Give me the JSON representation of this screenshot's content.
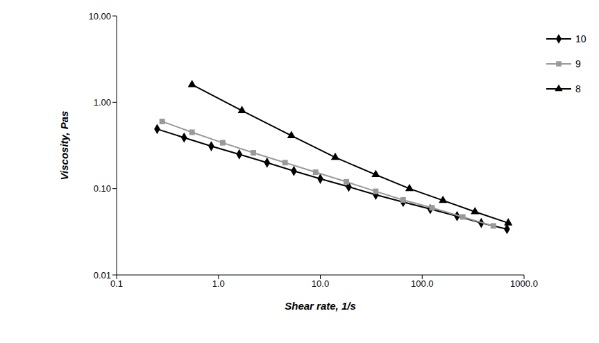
{
  "chart_data": {
    "type": "line",
    "x_label": "Shear rate, 1/s",
    "y_label": "Viscosity, Pas",
    "log": true,
    "grid": false,
    "legend": "right",
    "xlim": [
      0.1,
      1000
    ],
    "xticks": [
      0.1,
      {
        "value": 1,
        "label": "1.0"
      },
      {
        "value": 10,
        "label": "10.0"
      },
      {
        "value": 100,
        "label": "100.0"
      },
      {
        "value": 1000,
        "label": "1000.0"
      }
    ],
    "ylim": [
      0.01,
      10
    ],
    "yticks": [
      {
        "value": 0.01,
        "label": "0.01"
      },
      {
        "value": 0.1,
        "label": "0.10"
      },
      {
        "value": 1,
        "label": "1.00"
      },
      {
        "value": 10,
        "label": "10.00"
      }
    ],
    "series": [
      {
        "name": "10",
        "color": "#000000",
        "marker": "diamond",
        "x": [
          0.25,
          0.46,
          0.85,
          1.6,
          3,
          5.5,
          10,
          19,
          35,
          65,
          120,
          220,
          380,
          680
        ],
        "values": [
          0.49,
          0.39,
          0.31,
          0.25,
          0.2,
          0.16,
          0.13,
          0.105,
          0.085,
          0.07,
          0.058,
          0.048,
          0.04,
          0.034
        ]
      },
      {
        "name": "9",
        "color": "#999999",
        "marker": "square",
        "x": [
          0.28,
          0.55,
          1.1,
          2.2,
          4.5,
          9,
          18,
          35,
          65,
          125,
          250,
          500
        ],
        "values": [
          0.6,
          0.45,
          0.34,
          0.26,
          0.2,
          0.155,
          0.12,
          0.093,
          0.074,
          0.06,
          0.047,
          0.037
        ]
      },
      {
        "name": "8",
        "color": "#000000",
        "marker": "triangle",
        "x": [
          0.55,
          1.7,
          5.2,
          14,
          35,
          75,
          160,
          330,
          700
        ],
        "values": [
          1.6,
          0.8,
          0.41,
          0.23,
          0.145,
          0.1,
          0.073,
          0.054,
          0.04
        ]
      }
    ]
  }
}
